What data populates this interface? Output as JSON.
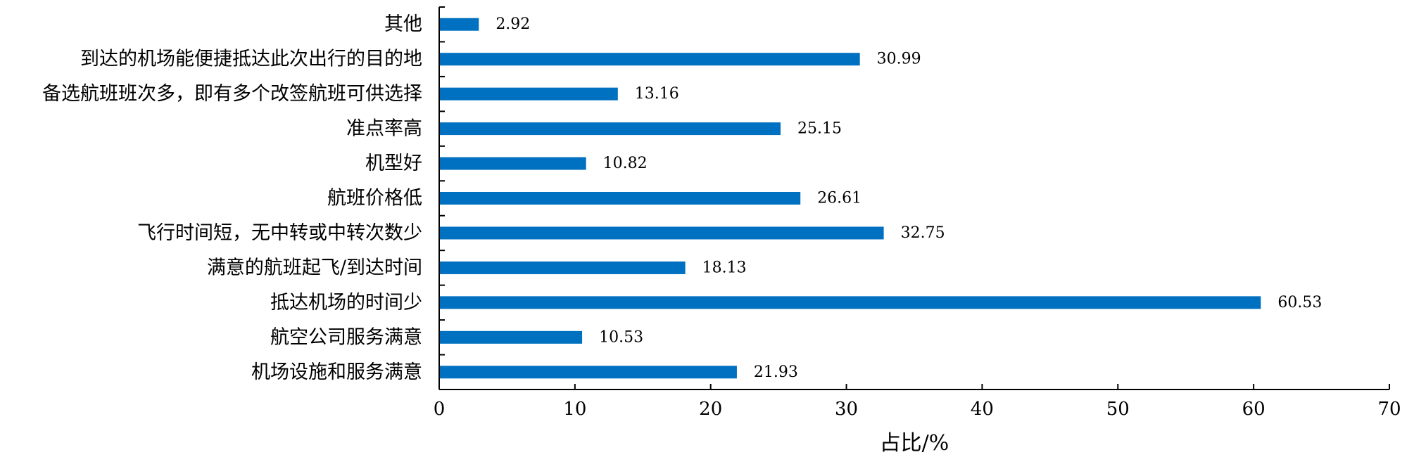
{
  "chart_data": {
    "type": "bar",
    "orientation": "horizontal",
    "categories": [
      "其他",
      "到达的机场能便捷抵达此次出行的目的地",
      "备选航班班次多，即有多个改签航班可供选择",
      "准点率高",
      "机型好",
      "航班价格低",
      "飞行时间短，无中转或中转次数少",
      "满意的航班起飞/到达时间",
      "抵达机场的时间少",
      "航空公司服务满意",
      "机场设施和服务满意"
    ],
    "values": [
      2.92,
      30.99,
      13.16,
      25.15,
      10.82,
      26.61,
      32.75,
      18.13,
      60.53,
      10.53,
      21.93
    ],
    "data_labels": [
      "2.92",
      "30.99",
      "13.16",
      "25.15",
      "10.82",
      "26.61",
      "32.75",
      "18.13",
      "60.53",
      "10.53",
      "21.93"
    ],
    "xlabel": "占比/%",
    "xlim": [
      0,
      70
    ],
    "xticks": [
      0,
      10,
      20,
      30,
      40,
      50,
      60,
      70
    ],
    "bar_color": "#0070C0",
    "grid": false,
    "legend": "none"
  }
}
